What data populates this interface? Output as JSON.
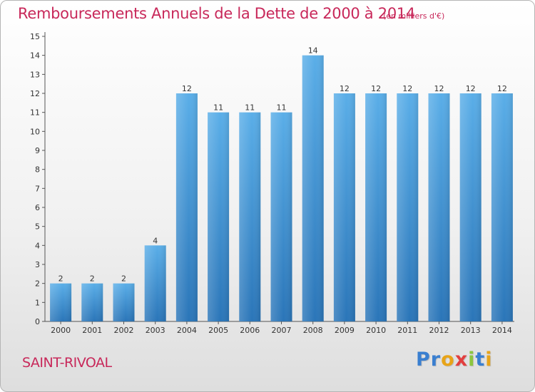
{
  "title": "Remboursements Annuels de la Dette de 2000 à 2014",
  "subtitle": "(en milliers d'€)",
  "commune": "SAINT-RIVOAL",
  "logo": {
    "text": "Proxiti",
    "colors": [
      "#3a7fd0",
      "#3a7fd0",
      "#e8a418",
      "#e23f3f",
      "#8cc63f",
      "#3a7fd0",
      "#e8a418"
    ]
  },
  "colors": {
    "bar_top": "#5aaee8",
    "bar_bottom": "#2a75b8",
    "text_accent": "#c8285a"
  },
  "chart_data": {
    "type": "bar",
    "title": "Remboursements Annuels de la Dette de 2000 à 2014",
    "categories": [
      "2000",
      "2001",
      "2002",
      "2003",
      "2004",
      "2005",
      "2006",
      "2007",
      "2008",
      "2009",
      "2010",
      "2011",
      "2012",
      "2013",
      "2014"
    ],
    "values": [
      2,
      2,
      2,
      4,
      12,
      11,
      11,
      11,
      14,
      12,
      12,
      12,
      12,
      12,
      12
    ],
    "data_labels": [
      "2",
      "2",
      "2",
      "4",
      "12",
      "11",
      "11",
      "11",
      "14",
      "12",
      "12",
      "12",
      "12",
      "12",
      "12"
    ],
    "y_ticks": [
      0,
      1,
      2,
      3,
      4,
      5,
      6,
      7,
      8,
      9,
      10,
      11,
      12,
      13,
      14,
      15
    ],
    "ylim": [
      0,
      15
    ],
    "xlabel": "",
    "ylabel": "",
    "grid": false,
    "legend": "none"
  }
}
